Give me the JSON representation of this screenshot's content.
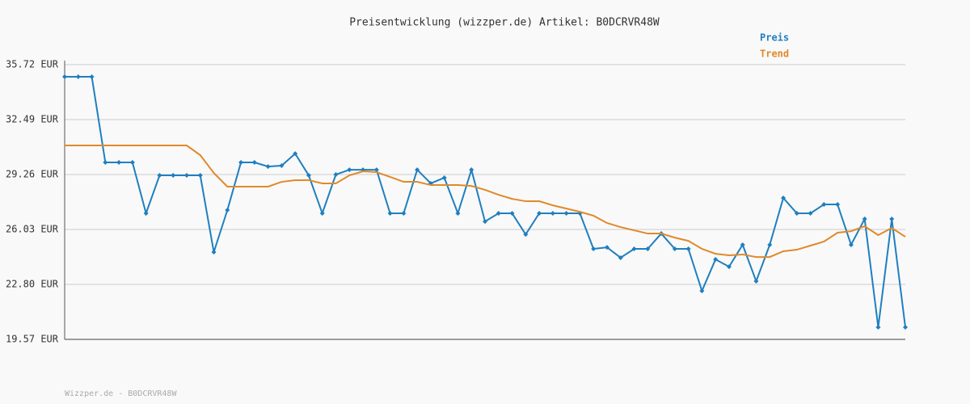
{
  "chart_data": {
    "type": "line",
    "title": "Preisentwicklung (wizzper.de) Artikel: B0DCRVR48W",
    "footer": "Wizzper.de - B0DCRVR48W",
    "ylim": [
      19.57,
      35.72
    ],
    "yticks": [
      {
        "value": 19.57,
        "label": "19.57 EUR"
      },
      {
        "value": 22.8,
        "label": "22.80 EUR"
      },
      {
        "value": 26.03,
        "label": "26.03 EUR"
      },
      {
        "value": 29.26,
        "label": "29.26 EUR"
      },
      {
        "value": 32.49,
        "label": "32.49 EUR"
      },
      {
        "value": 35.72,
        "label": "35.72 EUR"
      }
    ],
    "grid": true,
    "legend": "top-right",
    "series": [
      {
        "name": "Preis",
        "color": "#1f7fbf",
        "markers": true,
        "values": [
          35.01,
          35.01,
          35.01,
          29.97,
          29.97,
          29.97,
          26.98,
          29.21,
          29.21,
          29.21,
          29.21,
          24.7,
          27.17,
          29.97,
          29.97,
          29.73,
          29.78,
          30.49,
          29.21,
          26.98,
          29.26,
          29.54,
          29.54,
          29.54,
          26.98,
          26.98,
          29.54,
          28.74,
          29.07,
          26.98,
          29.54,
          26.5,
          26.98,
          26.98,
          25.74,
          26.98,
          26.98,
          26.98,
          26.98,
          24.89,
          24.98,
          24.37,
          24.89,
          24.89,
          25.79,
          24.89,
          24.89,
          22.42,
          24.27,
          23.84,
          25.13,
          22.99,
          25.13,
          27.88,
          26.98,
          26.98,
          27.5,
          27.5,
          25.13,
          26.65,
          20.28,
          26.65,
          20.28
        ]
      },
      {
        "name": "Trend",
        "color": "#e0892a",
        "markers": false,
        "values": [
          30.97,
          30.97,
          30.97,
          30.97,
          30.97,
          30.97,
          30.97,
          30.97,
          30.97,
          30.97,
          30.4,
          29.35,
          28.55,
          28.55,
          28.55,
          28.55,
          28.83,
          28.93,
          28.93,
          28.74,
          28.74,
          29.21,
          29.45,
          29.4,
          29.12,
          28.83,
          28.83,
          28.64,
          28.64,
          28.64,
          28.59,
          28.36,
          28.07,
          27.83,
          27.69,
          27.69,
          27.45,
          27.26,
          27.07,
          26.84,
          26.41,
          26.17,
          25.98,
          25.79,
          25.79,
          25.55,
          25.36,
          24.89,
          24.6,
          24.51,
          24.56,
          24.41,
          24.41,
          24.75,
          24.84,
          25.08,
          25.32,
          25.84,
          25.93,
          26.22,
          25.7,
          26.12,
          25.6
        ]
      }
    ]
  }
}
